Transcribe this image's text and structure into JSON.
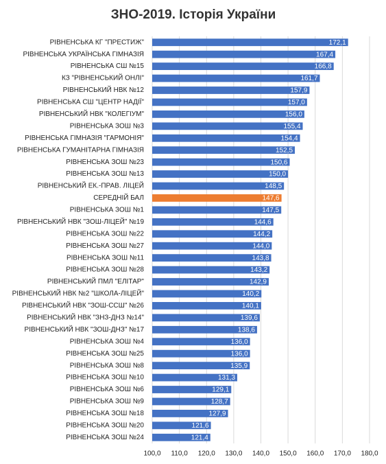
{
  "chart_data": {
    "type": "barh",
    "title": "ЗНО-2019. Історія України",
    "categories": [
      "РІВНЕНСЬКА КГ \"ПРЕСТИЖ\"",
      "РІВНЕНСЬКА УКРАЇНСЬКА ГІМНАЗІЯ",
      "РІВНЕНСЬКА СШ №15",
      "КЗ \"РІВНЕНСЬКИЙ ОНЛІ\"",
      "РІВНЕНСЬКИЙ НВК №12",
      "РІВНЕНСЬКА СШ \"ЦЕНТР НАДІЇ\"",
      "РІВНЕНСЬКИЙ НВК \"КОЛЕГІУМ\"",
      "РІВНЕНСЬКА ЗОШ №3",
      "РІВНЕНСЬКА ГІМНАЗІЯ \"ГАРМОНІЯ\"",
      "РІВНЕНСЬКА ГУМАНІТАРНА ГІМНАЗІЯ",
      "РІВНЕНСЬКА ЗОШ №23",
      "РІВНЕНСЬКА ЗОШ №13",
      "РІВНЕНСЬКИЙ ЕК.-ПРАВ. ЛІЦЕЙ",
      "СЕРЕДНІЙ БАЛ",
      "РІВНЕНСЬКА ЗОШ №1",
      "РІВНЕНСЬКИЙ НВК \"ЗОШ-ЛІЦЕЙ\" №19",
      "РІВНЕНСЬКА ЗОШ №22",
      "РІВНЕНСЬКА ЗОШ №27",
      "РІВНЕНСЬКА ЗОШ №11",
      "РІВНЕНСЬКА ЗОШ №28",
      "РІВНЕНСЬКИЙ ПМЛ \"ЕЛІТАР\"",
      "РІВНЕНСЬКИЙ НВК №2 \"ШКОЛА-ЛІЦЕЙ\"",
      "РІВНЕНСЬКИЙ НВК \"ЗОШ-ССШ\" №26",
      "РІВНЕНСЬКИЙ НВК \"ЗНЗ-ДНЗ №14\"",
      "РІВНЕНСЬКИЙ НВК \"ЗОШ-ДНЗ\" №17",
      "РІВНЕНСЬКА ЗОШ №4",
      "РІВНЕНСЬКА ЗОШ №25",
      "РІВНЕНСЬКА ЗОШ №8",
      "РІВНЕНСЬКА ЗОШ №10",
      "РІВНЕНСЬКА ЗОШ №6",
      "РІВНЕНСЬКА ЗОШ №9",
      "РІВНЕНСЬКА ЗОШ №18",
      "РІВНЕНСЬКА ЗОШ №20",
      "РІВНЕНСЬКА ЗОШ №24"
    ],
    "values": [
      172.1,
      167.4,
      166.8,
      161.7,
      157.9,
      157.0,
      156.0,
      155.4,
      154.4,
      152.5,
      150.6,
      150.0,
      148.5,
      147.6,
      147.5,
      144.6,
      144.2,
      144.0,
      143.8,
      143.2,
      142.9,
      140.2,
      140.1,
      139.6,
      138.6,
      136.0,
      136.0,
      135.9,
      131.3,
      129.1,
      128.7,
      127.9,
      121.6,
      121.4
    ],
    "value_labels": [
      "172,1",
      "167,4",
      "166,8",
      "161,7",
      "157,9",
      "157,0",
      "156,0",
      "155,4",
      "154,4",
      "152,5",
      "150,6",
      "150,0",
      "148,5",
      "147,6",
      "147,5",
      "144,6",
      "144,2",
      "144,0",
      "143,8",
      "143,2",
      "142,9",
      "140,2",
      "140,1",
      "139,6",
      "138,6",
      "136,0",
      "136,0",
      "135,9",
      "131,3",
      "129,1",
      "128,7",
      "127,9",
      "121,6",
      "121,4"
    ],
    "colors": [
      "#4472c4",
      "#4472c4",
      "#4472c4",
      "#4472c4",
      "#4472c4",
      "#4472c4",
      "#4472c4",
      "#4472c4",
      "#4472c4",
      "#4472c4",
      "#4472c4",
      "#4472c4",
      "#4472c4",
      "#ed7d31",
      "#4472c4",
      "#4472c4",
      "#4472c4",
      "#4472c4",
      "#4472c4",
      "#4472c4",
      "#4472c4",
      "#4472c4",
      "#4472c4",
      "#4472c4",
      "#4472c4",
      "#4472c4",
      "#4472c4",
      "#4472c4",
      "#4472c4",
      "#4472c4",
      "#4472c4",
      "#4472c4",
      "#4472c4",
      "#4472c4"
    ],
    "xlim": [
      100,
      180
    ],
    "xticks": [
      {
        "value": 100,
        "label": "100,0"
      },
      {
        "value": 110,
        "label": "110,0"
      },
      {
        "value": 120,
        "label": "120,0"
      },
      {
        "value": 130,
        "label": "130,0"
      },
      {
        "value": 140,
        "label": "140,0"
      },
      {
        "value": 150,
        "label": "150,0"
      },
      {
        "value": 160,
        "label": "160,0"
      },
      {
        "value": 170,
        "label": "170,0"
      },
      {
        "value": 180,
        "label": "180,0"
      }
    ],
    "grid": true
  }
}
